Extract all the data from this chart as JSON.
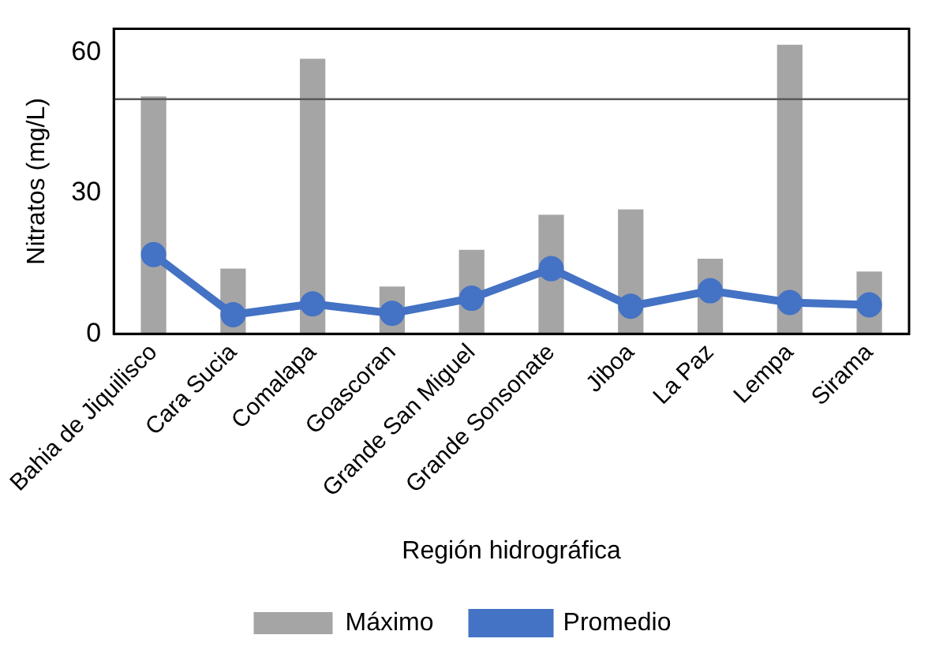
{
  "chart_data": {
    "type": "bar",
    "xlabel": "Región hidrográfica",
    "ylabel": "Nitratos (mg/L)",
    "categories": [
      "Bahia de Jiquilisco",
      "Cara Sucia",
      "Comalapa",
      "Goascoran",
      "Grande San Miguel",
      "Grande Sonsonate",
      "Jiboa",
      "La Paz",
      "Lempa",
      "Sirama"
    ],
    "series": [
      {
        "name": "Máximo",
        "color": "#a5a5a5",
        "values": [
          50.6,
          13.9,
          58.6,
          10.1,
          17.9,
          25.4,
          26.5,
          16,
          61.6,
          13.3
        ]
      },
      {
        "name": "Promedio",
        "type": "line",
        "color": "#4472c4",
        "values": [
          16.9,
          4.1,
          6.4,
          4.4,
          7.6,
          13.9,
          5.9,
          9.2,
          6.7,
          6.2
        ]
      }
    ],
    "ylim": [
      0,
      65
    ],
    "yticks": [
      0,
      30,
      60
    ],
    "grid": false,
    "legend": "bottom",
    "marker": "circle",
    "line_style": "solid",
    "ref_lines": [
      {
        "axis": "y",
        "value": 50,
        "color": "#595959"
      }
    ]
  }
}
